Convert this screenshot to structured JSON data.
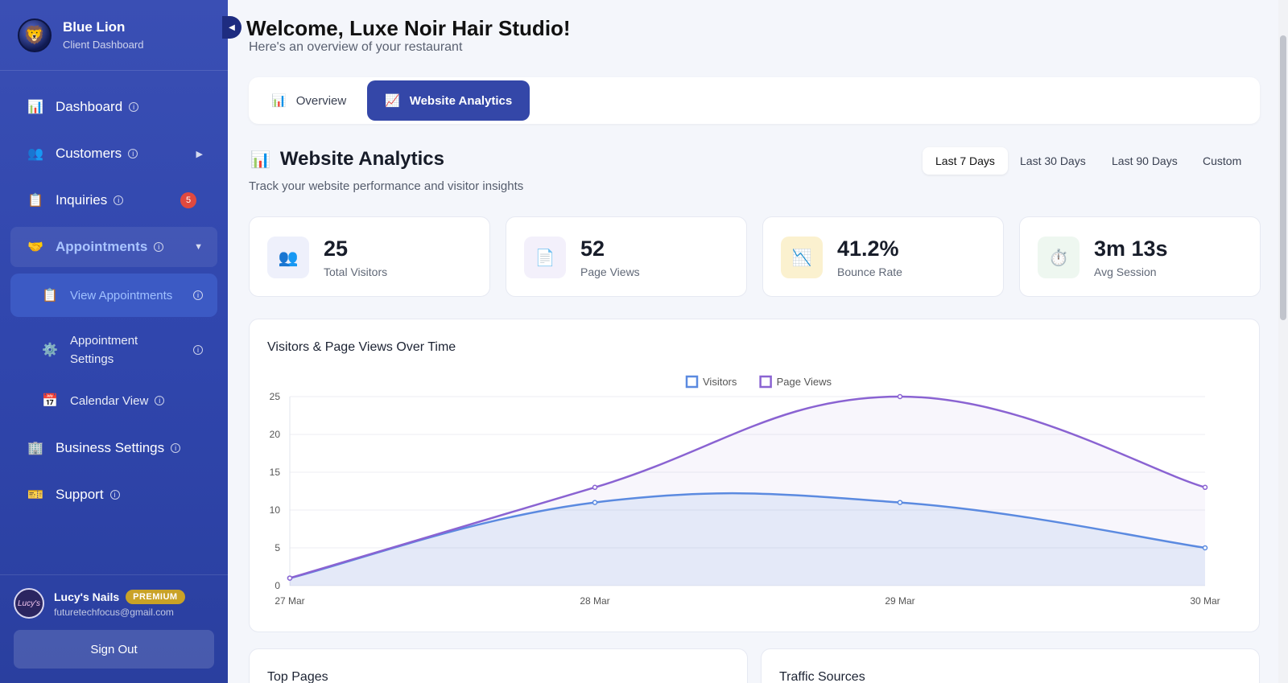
{
  "brand": {
    "name": "Blue Lion",
    "subtitle": "Client Dashboard"
  },
  "nav": {
    "dashboard": "Dashboard",
    "customers": "Customers",
    "inquiries": "Inquiries",
    "inquiries_badge": "5",
    "appointments": "Appointments",
    "view_appointments": "View Appointments",
    "appointment_settings": "Appointment Settings",
    "calendar_view": "Calendar View",
    "business_settings": "Business Settings",
    "support": "Support"
  },
  "user": {
    "name": "Lucy's Nails",
    "badge": "PREMIUM",
    "email": "futuretechfocus@gmail.com",
    "signout": "Sign Out",
    "avatar_text": "Lucy's"
  },
  "header": {
    "welcome": "Welcome, Luxe Noir Hair Studio!",
    "subtitle": "Here's an overview of your restaurant"
  },
  "tabs": {
    "overview": "Overview",
    "analytics": "Website Analytics"
  },
  "section": {
    "title": "Website Analytics",
    "subtitle": "Track your website performance and visitor insights"
  },
  "ranges": {
    "r7": "Last 7 Days",
    "r30": "Last 30 Days",
    "r90": "Last 90 Days",
    "custom": "Custom"
  },
  "stats": {
    "visitors": {
      "value": "25",
      "label": "Total Visitors"
    },
    "pageviews": {
      "value": "52",
      "label": "Page Views"
    },
    "bounce": {
      "value": "41.2%",
      "label": "Bounce Rate"
    },
    "session": {
      "value": "3m 13s",
      "label": "Avg Session"
    }
  },
  "chart_data": {
    "type": "line",
    "title": "Visitors & Page Views Over Time",
    "categories": [
      "27 Mar",
      "28 Mar",
      "29 Mar",
      "30 Mar"
    ],
    "series": [
      {
        "name": "Visitors",
        "values": [
          1,
          11,
          11,
          5
        ],
        "color": "#5b8ae0"
      },
      {
        "name": "Page Views",
        "values": [
          1,
          13,
          25,
          13
        ],
        "color": "#8a63d2"
      }
    ],
    "ylim": [
      0,
      25
    ],
    "yticks": [
      0,
      5,
      10,
      15,
      20,
      25
    ],
    "legend": "top-center",
    "grid": true
  },
  "bottom": {
    "top_pages": "Top Pages",
    "traffic_sources": "Traffic Sources"
  },
  "colors": {
    "sidebar": "#3046ad",
    "accent": "#3447a8",
    "badge": "#e0493f",
    "premium": "#c9a227"
  }
}
